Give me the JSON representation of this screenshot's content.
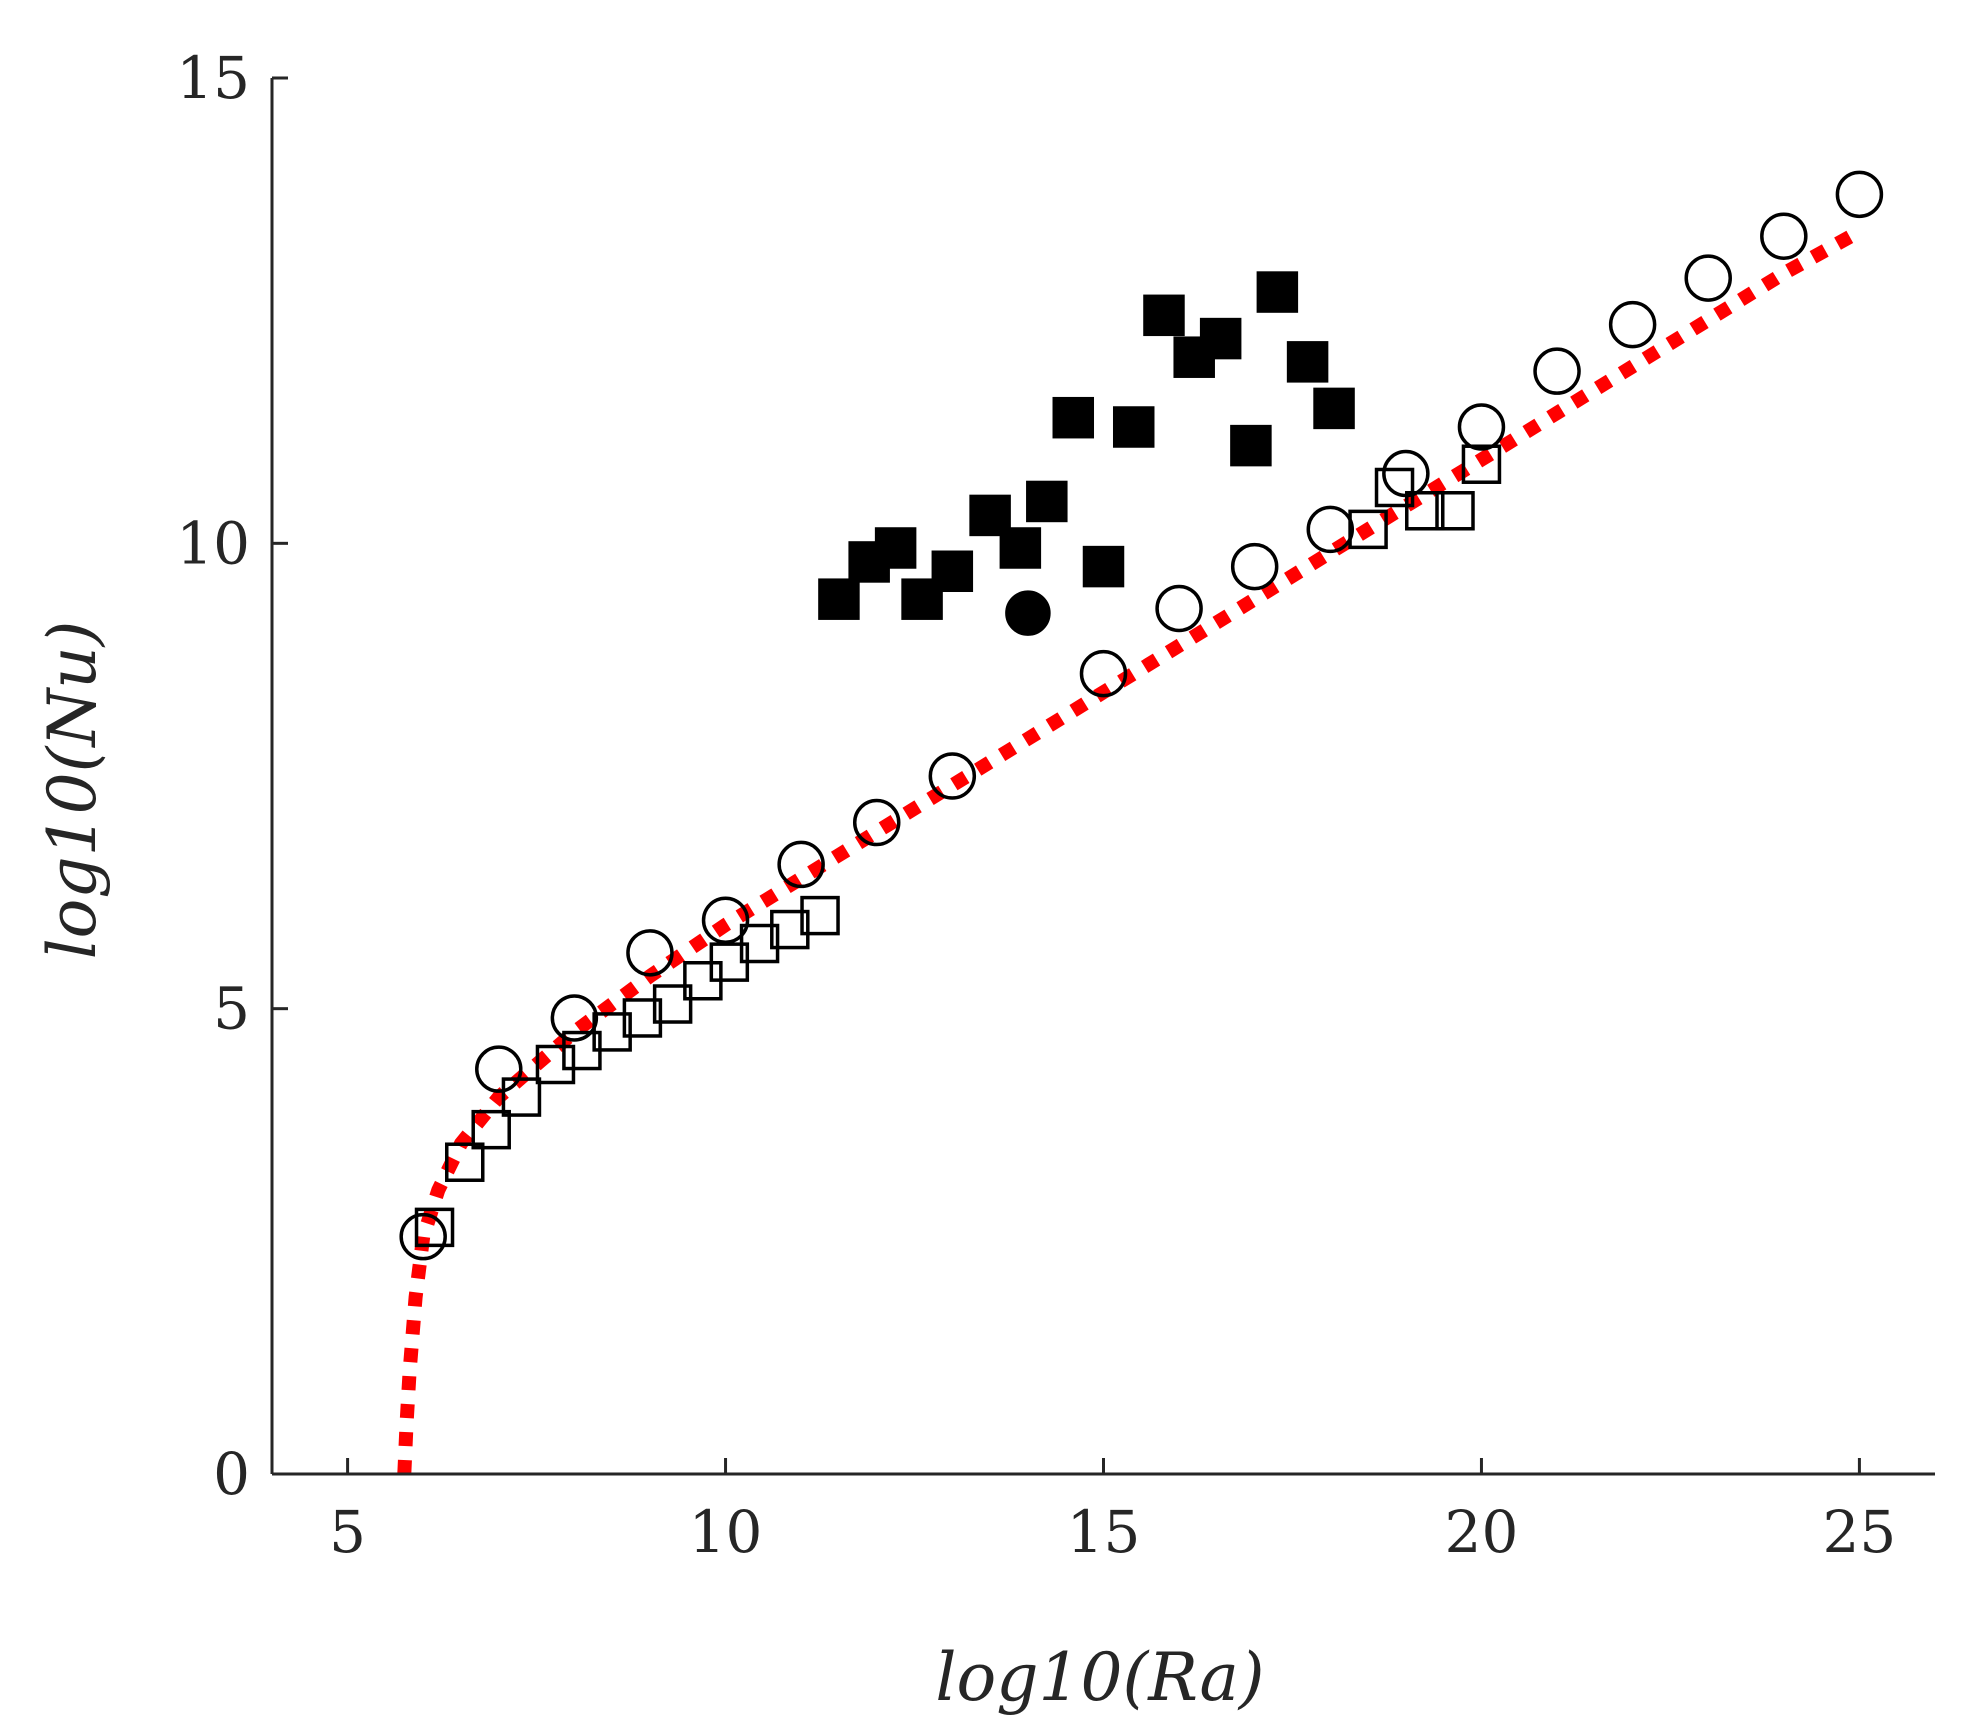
{
  "chart_data": {
    "type": "scatter",
    "title": "",
    "xlabel": "log10(Ra)",
    "ylabel": "log10(Nu)",
    "xlim": [
      4,
      26
    ],
    "ylim": [
      0,
      15
    ],
    "xticks": [
      5,
      10,
      15,
      20,
      25
    ],
    "yticks": [
      0,
      5,
      10,
      15
    ],
    "xtick_labels": [
      "5",
      "10",
      "15",
      "20",
      "25"
    ],
    "ytick_labels": [
      "0",
      "5",
      "10",
      "15"
    ],
    "grid": false,
    "legend": "none",
    "series": [
      {
        "name": "open-circles",
        "marker": "circle",
        "filled": false,
        "color": "#000000",
        "x": [
          6,
          7,
          8,
          9,
          10,
          11,
          12,
          13,
          15,
          16,
          17,
          18,
          19,
          20,
          21,
          22,
          23,
          24,
          25
        ],
        "y": [
          2.55,
          4.35,
          4.9,
          5.6,
          5.95,
          6.55,
          7.0,
          7.5,
          8.6,
          9.3,
          9.75,
          10.15,
          10.75,
          11.25,
          11.85,
          12.35,
          12.85,
          13.3,
          13.75
        ]
      },
      {
        "name": "open-squares",
        "marker": "square",
        "filled": false,
        "color": "#000000",
        "x": [
          6.15,
          6.55,
          6.9,
          7.3,
          7.75,
          8.1,
          8.5,
          8.9,
          9.3,
          9.7,
          10.05,
          10.45,
          10.85,
          11.25,
          18.5,
          18.85,
          19.25,
          19.65,
          20.0
        ],
        "y": [
          2.65,
          3.35,
          3.7,
          4.05,
          4.4,
          4.55,
          4.75,
          4.9,
          5.05,
          5.3,
          5.5,
          5.7,
          5.85,
          6.0,
          10.15,
          10.6,
          10.35,
          10.35,
          10.85
        ]
      },
      {
        "name": "filled-squares",
        "marker": "square",
        "filled": true,
        "color": "#000000",
        "x": [
          11.5,
          11.9,
          12.25,
          12.6,
          13.0,
          13.5,
          13.9,
          14.25,
          14.6,
          15.0,
          15.4,
          15.8,
          16.2,
          16.55,
          16.95,
          17.3,
          17.7,
          18.05
        ],
        "y": [
          9.4,
          9.8,
          9.95,
          9.4,
          9.7,
          10.3,
          9.95,
          10.45,
          11.35,
          9.75,
          11.25,
          12.45,
          12.0,
          12.2,
          11.05,
          12.7,
          11.95,
          11.45
        ]
      },
      {
        "name": "filled-circle",
        "marker": "circle",
        "filled": true,
        "color": "#000000",
        "x": [
          14
        ],
        "y": [
          9.25
        ]
      },
      {
        "name": "fit-curve",
        "marker": "dotted-line",
        "color": "#ff0000",
        "x": [
          5.75,
          5.78,
          5.82,
          5.9,
          6.0,
          6.2,
          6.5,
          7.0,
          7.5,
          8.0,
          9.0,
          10.0,
          11.0,
          12.0,
          13.0,
          14.0,
          15.0,
          16.0,
          17.0,
          18.0,
          19.0,
          20.0,
          21.0,
          22.0,
          23.0,
          24.0,
          25.0
        ],
        "y": [
          0.0,
          0.55,
          1.1,
          1.9,
          2.55,
          3.05,
          3.55,
          4.05,
          4.4,
          4.75,
          5.35,
          5.9,
          6.4,
          6.9,
          7.4,
          7.9,
          8.4,
          8.9,
          9.4,
          9.9,
          10.4,
          10.9,
          11.4,
          11.9,
          12.4,
          12.9,
          13.35
        ]
      }
    ]
  }
}
